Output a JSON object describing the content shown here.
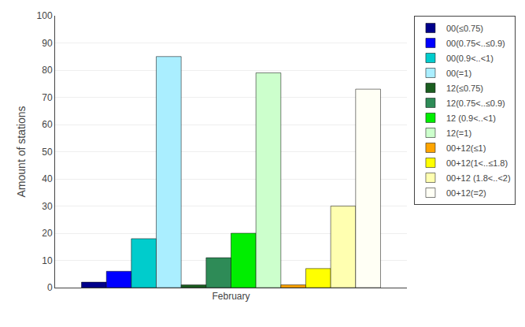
{
  "chart_data": {
    "type": "bar",
    "categories": [
      "February"
    ],
    "ylabel": "Amount of stations",
    "ylim": [
      0,
      100
    ],
    "yticks": [
      0,
      10,
      20,
      30,
      40,
      50,
      60,
      70,
      80,
      90,
      100
    ],
    "grid": true,
    "legend": "upper right",
    "series": [
      {
        "name": "00(≤0.75)",
        "color": "#00008B",
        "values": [
          2
        ]
      },
      {
        "name": "00(0.75<..≤0.9)",
        "color": "#0000FF",
        "values": [
          6
        ]
      },
      {
        "name": "00(0.9<..<1)",
        "color": "#00CCCC",
        "values": [
          18
        ]
      },
      {
        "name": "00(=1)",
        "color": "#AAEEFF",
        "values": [
          85
        ]
      },
      {
        "name": "12(≤0.75)",
        "color": "#1B5E20",
        "values": [
          1
        ]
      },
      {
        "name": "12(0.75<..≤0.9)",
        "color": "#2E8B57",
        "values": [
          11
        ]
      },
      {
        "name": "12 (0.9<..<1)",
        "color": "#00EE00",
        "values": [
          20
        ]
      },
      {
        "name": "12(=1)",
        "color": "#CCFFCC",
        "values": [
          79
        ]
      },
      {
        "name": "00+12(≤1)",
        "color": "#FFA500",
        "values": [
          1
        ]
      },
      {
        "name": "00+12(1<..≤1.8)",
        "color": "#FFFF00",
        "values": [
          7
        ]
      },
      {
        "name": "00+12 (1.8<..<2)",
        "color": "#FFFFB0",
        "values": [
          30
        ]
      },
      {
        "name": "00+12(=2)",
        "color": "#FFFFF5",
        "values": [
          73
        ]
      }
    ]
  }
}
